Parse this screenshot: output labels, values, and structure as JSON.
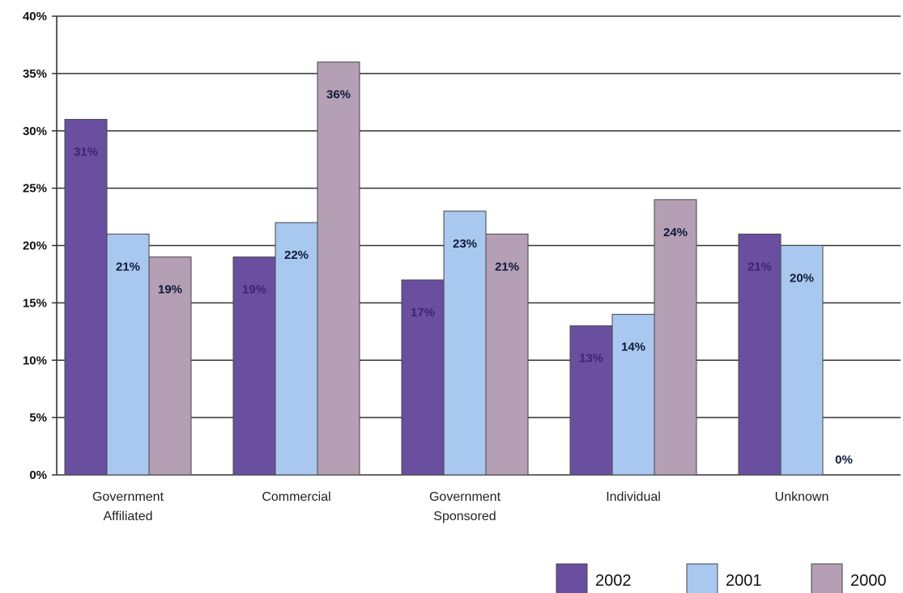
{
  "chart_data": {
    "type": "bar",
    "categories": [
      "Government\nAffiliated",
      "Commercial",
      "Government\nSponsored",
      "Individual",
      "Unknown"
    ],
    "series": [
      {
        "name": "2002",
        "values": [
          31,
          19,
          17,
          13,
          21
        ],
        "labels": [
          "31%",
          "19%",
          "17%",
          "13%",
          "21%"
        ],
        "color": "#6a4fa0"
      },
      {
        "name": "2001",
        "values": [
          21,
          22,
          23,
          14,
          20
        ],
        "labels": [
          "21%",
          "22%",
          "23%",
          "14%",
          "20%"
        ],
        "color": "#a9c8f0"
      },
      {
        "name": "2000",
        "values": [
          19,
          36,
          21,
          24,
          0
        ],
        "labels": [
          "19%",
          "36%",
          "21%",
          "24%",
          "0%"
        ],
        "color": "#b59fb5"
      }
    ],
    "yticks": [
      "0%",
      "5%",
      "10%",
      "15%",
      "20%",
      "25%",
      "30%",
      "35%",
      "40%"
    ],
    "ylim": [
      0,
      40
    ],
    "grid": true,
    "legend": "bottom-right",
    "title": "",
    "xlabel": "",
    "ylabel": ""
  }
}
